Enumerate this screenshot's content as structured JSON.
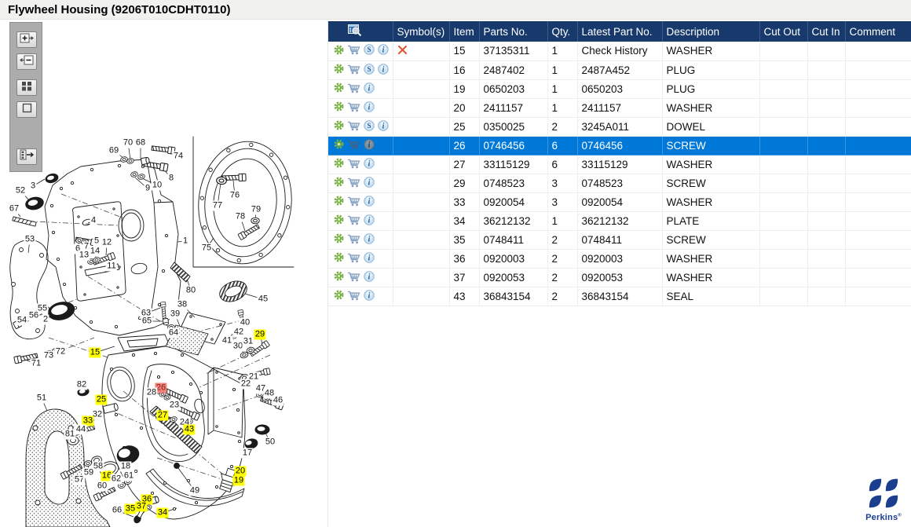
{
  "title": "Flywheel Housing (9206T010CDHT0110)",
  "toolbar": {
    "buttons": [
      {
        "name": "zoom-in-button",
        "icon": "zoom-in-icon"
      },
      {
        "name": "zoom-out-button",
        "icon": "zoom-out-icon"
      },
      {
        "name": "tile-view-button",
        "icon": "tiles-icon"
      },
      {
        "name": "single-view-button",
        "icon": "square-icon"
      },
      {
        "name": "toggle-list-button",
        "icon": "panel-arrow-icon"
      }
    ]
  },
  "diagram": {
    "selected_item": "26",
    "highlight_color": "#ffff00",
    "selected_color": "#f2837b",
    "callouts": [
      [
        "1",
        236,
        307,
        226,
        308,
        ""
      ],
      [
        "2",
        58,
        407,
        72,
        398,
        ""
      ],
      [
        "3",
        42,
        237,
        57,
        228,
        ""
      ],
      [
        "4",
        119,
        281,
        112,
        284,
        ""
      ],
      [
        "5",
        123,
        307,
        118,
        305,
        ""
      ],
      [
        "6",
        99,
        317,
        101,
        309,
        ""
      ],
      [
        "7",
        110,
        314,
        108,
        310,
        ""
      ],
      [
        "8",
        218,
        227,
        208,
        215,
        ""
      ],
      [
        "9",
        188,
        240,
        172,
        226,
        ""
      ],
      [
        "10",
        200,
        236,
        181,
        227,
        ""
      ],
      [
        "11",
        142,
        339,
        133,
        347,
        ""
      ],
      [
        "12",
        136,
        309,
        135,
        325,
        ""
      ],
      [
        "13",
        107,
        325,
        116,
        331,
        ""
      ],
      [
        "14",
        121,
        320,
        122,
        329,
        ""
      ],
      [
        "15",
        121,
        449,
        146,
        441,
        "y"
      ],
      [
        "16",
        136,
        606,
        139,
        599,
        "y"
      ],
      [
        "17",
        315,
        577,
        319,
        567,
        ""
      ],
      [
        "18",
        160,
        594,
        163,
        583,
        ""
      ],
      [
        "19",
        304,
        612,
        297,
        619,
        "y"
      ],
      [
        "20",
        306,
        600,
        296,
        607,
        "y"
      ],
      [
        "21",
        323,
        480,
        331,
        476,
        ""
      ],
      [
        "22",
        313,
        489,
        312,
        483,
        ""
      ],
      [
        "23",
        222,
        516,
        240,
        524,
        ""
      ],
      [
        "24",
        235,
        538,
        240,
        536,
        ""
      ],
      [
        "25",
        129,
        509,
        138,
        518,
        "y"
      ],
      [
        "26",
        205,
        494,
        222,
        501,
        "r"
      ],
      [
        "27",
        207,
        529,
        219,
        532,
        "y"
      ],
      [
        "28",
        193,
        500,
        206,
        502,
        ""
      ],
      [
        "29",
        331,
        426,
        334,
        438,
        "y"
      ],
      [
        "30",
        303,
        441,
        311,
        450,
        ""
      ],
      [
        "31",
        316,
        435,
        319,
        445,
        ""
      ],
      [
        "32",
        124,
        528,
        119,
        536,
        ""
      ],
      [
        "33",
        112,
        536,
        113,
        534,
        "y"
      ],
      [
        "34",
        207,
        653,
        225,
        647,
        "y"
      ],
      [
        "35",
        166,
        648,
        180,
        649,
        "y"
      ],
      [
        "36",
        187,
        636,
        195,
        638,
        "y"
      ],
      [
        "37",
        180,
        645,
        188,
        645,
        "y"
      ],
      [
        "38",
        232,
        388,
        248,
        404,
        ""
      ],
      [
        "39",
        223,
        400,
        232,
        423,
        ""
      ],
      [
        "40",
        312,
        411,
        308,
        404,
        ""
      ],
      [
        "41",
        289,
        434,
        297,
        427,
        ""
      ],
      [
        "42",
        304,
        423,
        304,
        421,
        ""
      ],
      [
        "43",
        241,
        547,
        228,
        556,
        "y"
      ],
      [
        "44",
        103,
        547,
        104,
        549,
        ""
      ],
      [
        "45",
        335,
        381,
        312,
        374,
        ""
      ],
      [
        "46",
        354,
        510,
        352,
        513,
        ""
      ],
      [
        "47",
        332,
        495,
        331,
        501,
        ""
      ],
      [
        "48",
        343,
        501,
        339,
        506,
        ""
      ],
      [
        "49",
        248,
        625,
        227,
        596,
        ""
      ],
      [
        "50",
        344,
        563,
        337,
        549,
        ""
      ],
      [
        "51",
        53,
        507,
        60,
        523,
        ""
      ],
      [
        "52",
        26,
        243,
        38,
        256,
        ""
      ],
      [
        "53",
        38,
        305,
        36,
        322,
        ""
      ],
      [
        "54",
        28,
        408,
        26,
        410,
        ""
      ],
      [
        "55",
        54,
        393,
        57,
        394,
        ""
      ],
      [
        "56",
        43,
        402,
        49,
        397,
        ""
      ],
      [
        "57",
        101,
        611,
        90,
        605,
        ""
      ],
      [
        "58",
        125,
        594,
        122,
        587,
        ""
      ],
      [
        "59",
        113,
        602,
        112,
        591,
        ""
      ],
      [
        "60",
        130,
        619,
        129,
        628,
        ""
      ],
      [
        "61",
        164,
        606,
        163,
        613,
        ""
      ],
      [
        "62",
        148,
        610,
        155,
        617,
        ""
      ],
      [
        "63",
        186,
        399,
        204,
        392,
        ""
      ],
      [
        "64",
        221,
        424,
        218,
        417,
        ""
      ],
      [
        "65",
        187,
        409,
        209,
        409,
        ""
      ],
      [
        "66",
        149,
        650,
        170,
        658,
        ""
      ],
      [
        "67",
        18,
        266,
        26,
        276,
        ""
      ],
      [
        "68",
        179,
        182,
        179,
        202,
        ""
      ],
      [
        "69",
        145,
        192,
        157,
        201,
        ""
      ],
      [
        "70",
        163,
        182,
        166,
        203,
        ""
      ],
      [
        "71",
        46,
        463,
        32,
        458,
        ""
      ],
      [
        "72",
        77,
        448,
        71,
        448,
        ""
      ],
      [
        "73",
        62,
        453,
        63,
        450,
        ""
      ],
      [
        "74",
        227,
        199,
        215,
        192,
        ""
      ],
      [
        "75",
        263,
        316,
        272,
        303,
        ""
      ],
      [
        "76",
        299,
        249,
        297,
        230,
        ""
      ],
      [
        "77",
        277,
        262,
        281,
        233,
        ""
      ],
      [
        "78",
        306,
        276,
        312,
        294,
        ""
      ],
      [
        "79",
        326,
        267,
        325,
        280,
        ""
      ],
      [
        "80",
        243,
        370,
        237,
        352,
        ""
      ],
      [
        "81",
        89,
        553,
        92,
        559,
        ""
      ],
      [
        "82",
        104,
        490,
        106,
        496,
        ""
      ]
    ]
  },
  "table": {
    "columns": [
      "",
      "Symbol(s)",
      "Item",
      "Parts No.",
      "Qty.",
      "Latest Part No.",
      "Description",
      "Cut Out",
      "Cut In",
      "Comment"
    ],
    "rows": [
      {
        "item": "15",
        "parts_no": "37135311",
        "qty": "1",
        "latest_part_no": "Check History",
        "description": "WASHER",
        "cut_out": "",
        "cut_in": "",
        "comment": "",
        "s_badge": true,
        "symbol_x": true,
        "selected": false
      },
      {
        "item": "16",
        "parts_no": "2487402",
        "qty": "1",
        "latest_part_no": "2487A452",
        "description": "PLUG",
        "cut_out": "",
        "cut_in": "",
        "comment": "",
        "s_badge": true,
        "symbol_x": false,
        "selected": false
      },
      {
        "item": "19",
        "parts_no": "0650203",
        "qty": "1",
        "latest_part_no": "0650203",
        "description": "PLUG",
        "cut_out": "",
        "cut_in": "",
        "comment": "",
        "s_badge": false,
        "symbol_x": false,
        "selected": false
      },
      {
        "item": "20",
        "parts_no": "2411157",
        "qty": "1",
        "latest_part_no": "2411157",
        "description": "WASHER",
        "cut_out": "",
        "cut_in": "",
        "comment": "",
        "s_badge": false,
        "symbol_x": false,
        "selected": false
      },
      {
        "item": "25",
        "parts_no": "0350025",
        "qty": "2",
        "latest_part_no": "3245A011",
        "description": "DOWEL",
        "cut_out": "",
        "cut_in": "",
        "comment": "",
        "s_badge": true,
        "symbol_x": false,
        "selected": false
      },
      {
        "item": "26",
        "parts_no": "0746456",
        "qty": "6",
        "latest_part_no": "0746456",
        "description": "SCREW",
        "cut_out": "",
        "cut_in": "",
        "comment": "",
        "s_badge": false,
        "symbol_x": false,
        "selected": true
      },
      {
        "item": "27",
        "parts_no": "33115129",
        "qty": "6",
        "latest_part_no": "33115129",
        "description": "WASHER",
        "cut_out": "",
        "cut_in": "",
        "comment": "",
        "s_badge": false,
        "symbol_x": false,
        "selected": false
      },
      {
        "item": "29",
        "parts_no": "0748523",
        "qty": "3",
        "latest_part_no": "0748523",
        "description": "SCREW",
        "cut_out": "",
        "cut_in": "",
        "comment": "",
        "s_badge": false,
        "symbol_x": false,
        "selected": false
      },
      {
        "item": "33",
        "parts_no": "0920054",
        "qty": "3",
        "latest_part_no": "0920054",
        "description": "WASHER",
        "cut_out": "",
        "cut_in": "",
        "comment": "",
        "s_badge": false,
        "symbol_x": false,
        "selected": false
      },
      {
        "item": "34",
        "parts_no": "36212132",
        "qty": "1",
        "latest_part_no": "36212132",
        "description": "PLATE",
        "cut_out": "",
        "cut_in": "",
        "comment": "",
        "s_badge": false,
        "symbol_x": false,
        "selected": false
      },
      {
        "item": "35",
        "parts_no": "0748411",
        "qty": "2",
        "latest_part_no": "0748411",
        "description": "SCREW",
        "cut_out": "",
        "cut_in": "",
        "comment": "",
        "s_badge": false,
        "symbol_x": false,
        "selected": false
      },
      {
        "item": "36",
        "parts_no": "0920003",
        "qty": "2",
        "latest_part_no": "0920003",
        "description": "WASHER",
        "cut_out": "",
        "cut_in": "",
        "comment": "",
        "s_badge": false,
        "symbol_x": false,
        "selected": false
      },
      {
        "item": "37",
        "parts_no": "0920053",
        "qty": "2",
        "latest_part_no": "0920053",
        "description": "WASHER",
        "cut_out": "",
        "cut_in": "",
        "comment": "",
        "s_badge": false,
        "symbol_x": false,
        "selected": false
      },
      {
        "item": "43",
        "parts_no": "36843154",
        "qty": "2",
        "latest_part_no": "36843154",
        "description": "SEAL",
        "cut_out": "",
        "cut_in": "",
        "comment": "",
        "s_badge": false,
        "symbol_x": false,
        "selected": false
      }
    ]
  },
  "colors": {
    "header_bg": "#17396b",
    "selected_row_bg": "#0078d7",
    "gear_green": "#76b041",
    "cart_blue": "#7e9dc0",
    "symbol_x_red": "#e2512d",
    "brand_blue": "#1c3e8f"
  },
  "footer": {
    "brand": "Perkins"
  }
}
